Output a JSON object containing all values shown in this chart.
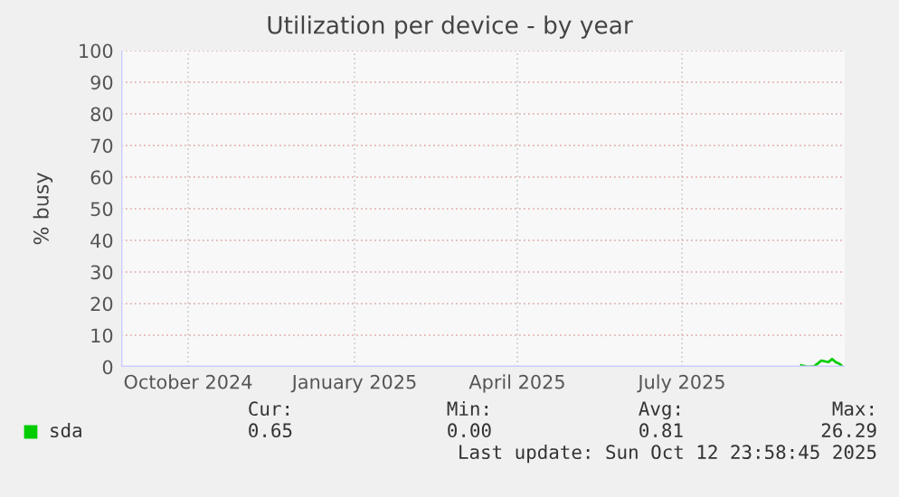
{
  "chart_data": {
    "type": "line",
    "title": "Utilization per device - by year",
    "ylabel": "% busy",
    "x": [
      "2025-09-19",
      "2025-09-23",
      "2025-09-26",
      "2025-09-28",
      "2025-09-30",
      "2025-10-04",
      "2025-10-06",
      "2025-10-08",
      "2025-10-10",
      "2025-10-11"
    ],
    "series": [
      {
        "name": "sda",
        "color": "#00cc00",
        "values": [
          0.5,
          0,
          0.2,
          1,
          2,
          1.5,
          2.5,
          1.5,
          1,
          0.5
        ]
      }
    ],
    "xlim": [
      "2024-09-08",
      "2025-10-13"
    ],
    "xticks": [
      {
        "value": "2024-10-15",
        "label": "October 2024"
      },
      {
        "value": "2025-01-15",
        "label": "January 2025"
      },
      {
        "value": "2025-04-15",
        "label": "April 2025"
      },
      {
        "value": "2025-07-15",
        "label": "July 2025"
      }
    ],
    "ylim": [
      0,
      100
    ],
    "yticks": [
      0,
      10,
      20,
      30,
      40,
      50,
      60,
      70,
      80,
      90,
      100
    ],
    "grid": true,
    "legend": "bottom",
    "marker": "none",
    "line_style": "solid",
    "annotations": [
      "Cur:",
      "Min:",
      "Avg:",
      "Max:",
      "0.65",
      "0.00",
      "0.81",
      "26.29",
      "Last update: Sun Oct 12 23:58:45 2025"
    ]
  }
}
